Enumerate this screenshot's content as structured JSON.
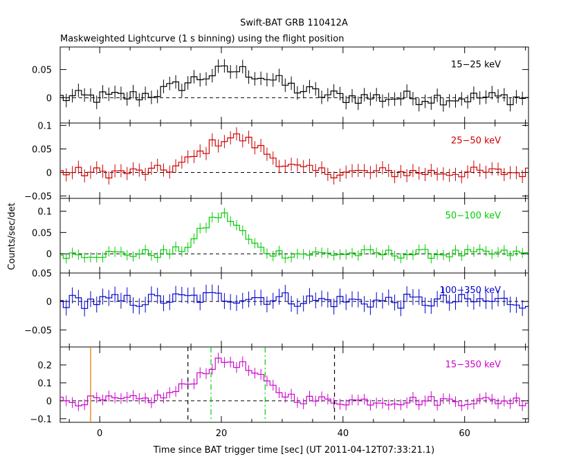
{
  "chart_data": {
    "type": "line",
    "title": "Swift-BAT GRB 110412A",
    "subtitle": "Maskweighted Lightcurve (1 s binning) using the flight position",
    "xlabel": "Time since BAT trigger time [sec] (UT 2011-04-12T07:33:21.1)",
    "ylabel": "Counts/sec/det",
    "xlim": [
      -6.5,
      70.5
    ],
    "xticks": [
      0,
      20,
      40,
      60
    ],
    "xtick_labels": [
      "0",
      "20",
      "40",
      "60"
    ],
    "panels": [
      {
        "name": "15-25",
        "label": "15−25 keV",
        "color": "#000000",
        "ylim": [
          -0.045,
          0.09
        ],
        "yticks": [
          0,
          0.05
        ],
        "ytick_labels": [
          "0",
          "0.05"
        ],
        "err": 0.012,
        "profile": {
          "base": 0.0,
          "peak": 0.048,
          "center": 22,
          "width": 7,
          "noise": 0.013
        }
      },
      {
        "name": "25-50",
        "label": "25−50 keV",
        "color": "#cc0000",
        "ylim": [
          -0.055,
          0.105
        ],
        "yticks": [
          -0.05,
          0,
          0.05,
          0.1
        ],
        "ytick_labels": [
          "−0.05",
          "0",
          "0.05",
          "0.1"
        ],
        "err": 0.014,
        "profile": {
          "base": 0.0,
          "peak": 0.075,
          "center": 22,
          "width": 5,
          "noise": 0.012
        }
      },
      {
        "name": "50-100",
        "label": "50−100 keV",
        "color": "#00cc00",
        "ylim": [
          -0.045,
          0.13
        ],
        "yticks": [
          0,
          0.05,
          0.1
        ],
        "ytick_labels": [
          "0",
          "0.05",
          "0.1"
        ],
        "err": 0.012,
        "profile": {
          "base": 0.0,
          "peak": 0.09,
          "center": 20,
          "width": 3.2,
          "noise": 0.011
        }
      },
      {
        "name": "100-350",
        "label": "100−350 keV",
        "color": "#0000cc",
        "ylim": [
          -0.08,
          0.05
        ],
        "yticks": [
          -0.05,
          0,
          0.05
        ],
        "ytick_labels": [
          "−0.05",
          "0",
          "0.05"
        ],
        "err": 0.014,
        "profile": {
          "base": 0.0,
          "peak": 0.008,
          "center": 22,
          "width": 8,
          "noise": 0.013
        }
      },
      {
        "name": "15-350",
        "label": "15−350 keV",
        "color": "#cc00cc",
        "ylim": [
          -0.12,
          0.3
        ],
        "yticks": [
          -0.1,
          0,
          0.1,
          0.2
        ],
        "ytick_labels": [
          "−0.1",
          "0",
          "0.1",
          "0.2"
        ],
        "err": 0.03,
        "profile": {
          "base": 0.0,
          "peak": 0.22,
          "center": 21,
          "width": 5,
          "noise": 0.028
        }
      }
    ],
    "markers": [
      {
        "x": -1.5,
        "style": "solid",
        "color": "#e07000",
        "panel": "15-350"
      },
      {
        "x": 14.5,
        "style": "dashed",
        "color": "#000000",
        "panel": "15-350"
      },
      {
        "x": 18.3,
        "style": "dashdot",
        "color": "#00cc00",
        "panel": "15-350"
      },
      {
        "x": 27.2,
        "style": "dashdot",
        "color": "#00cc00",
        "panel": "15-350"
      },
      {
        "x": 38.6,
        "style": "dashed",
        "color": "#000000",
        "panel": "15-350"
      }
    ]
  }
}
